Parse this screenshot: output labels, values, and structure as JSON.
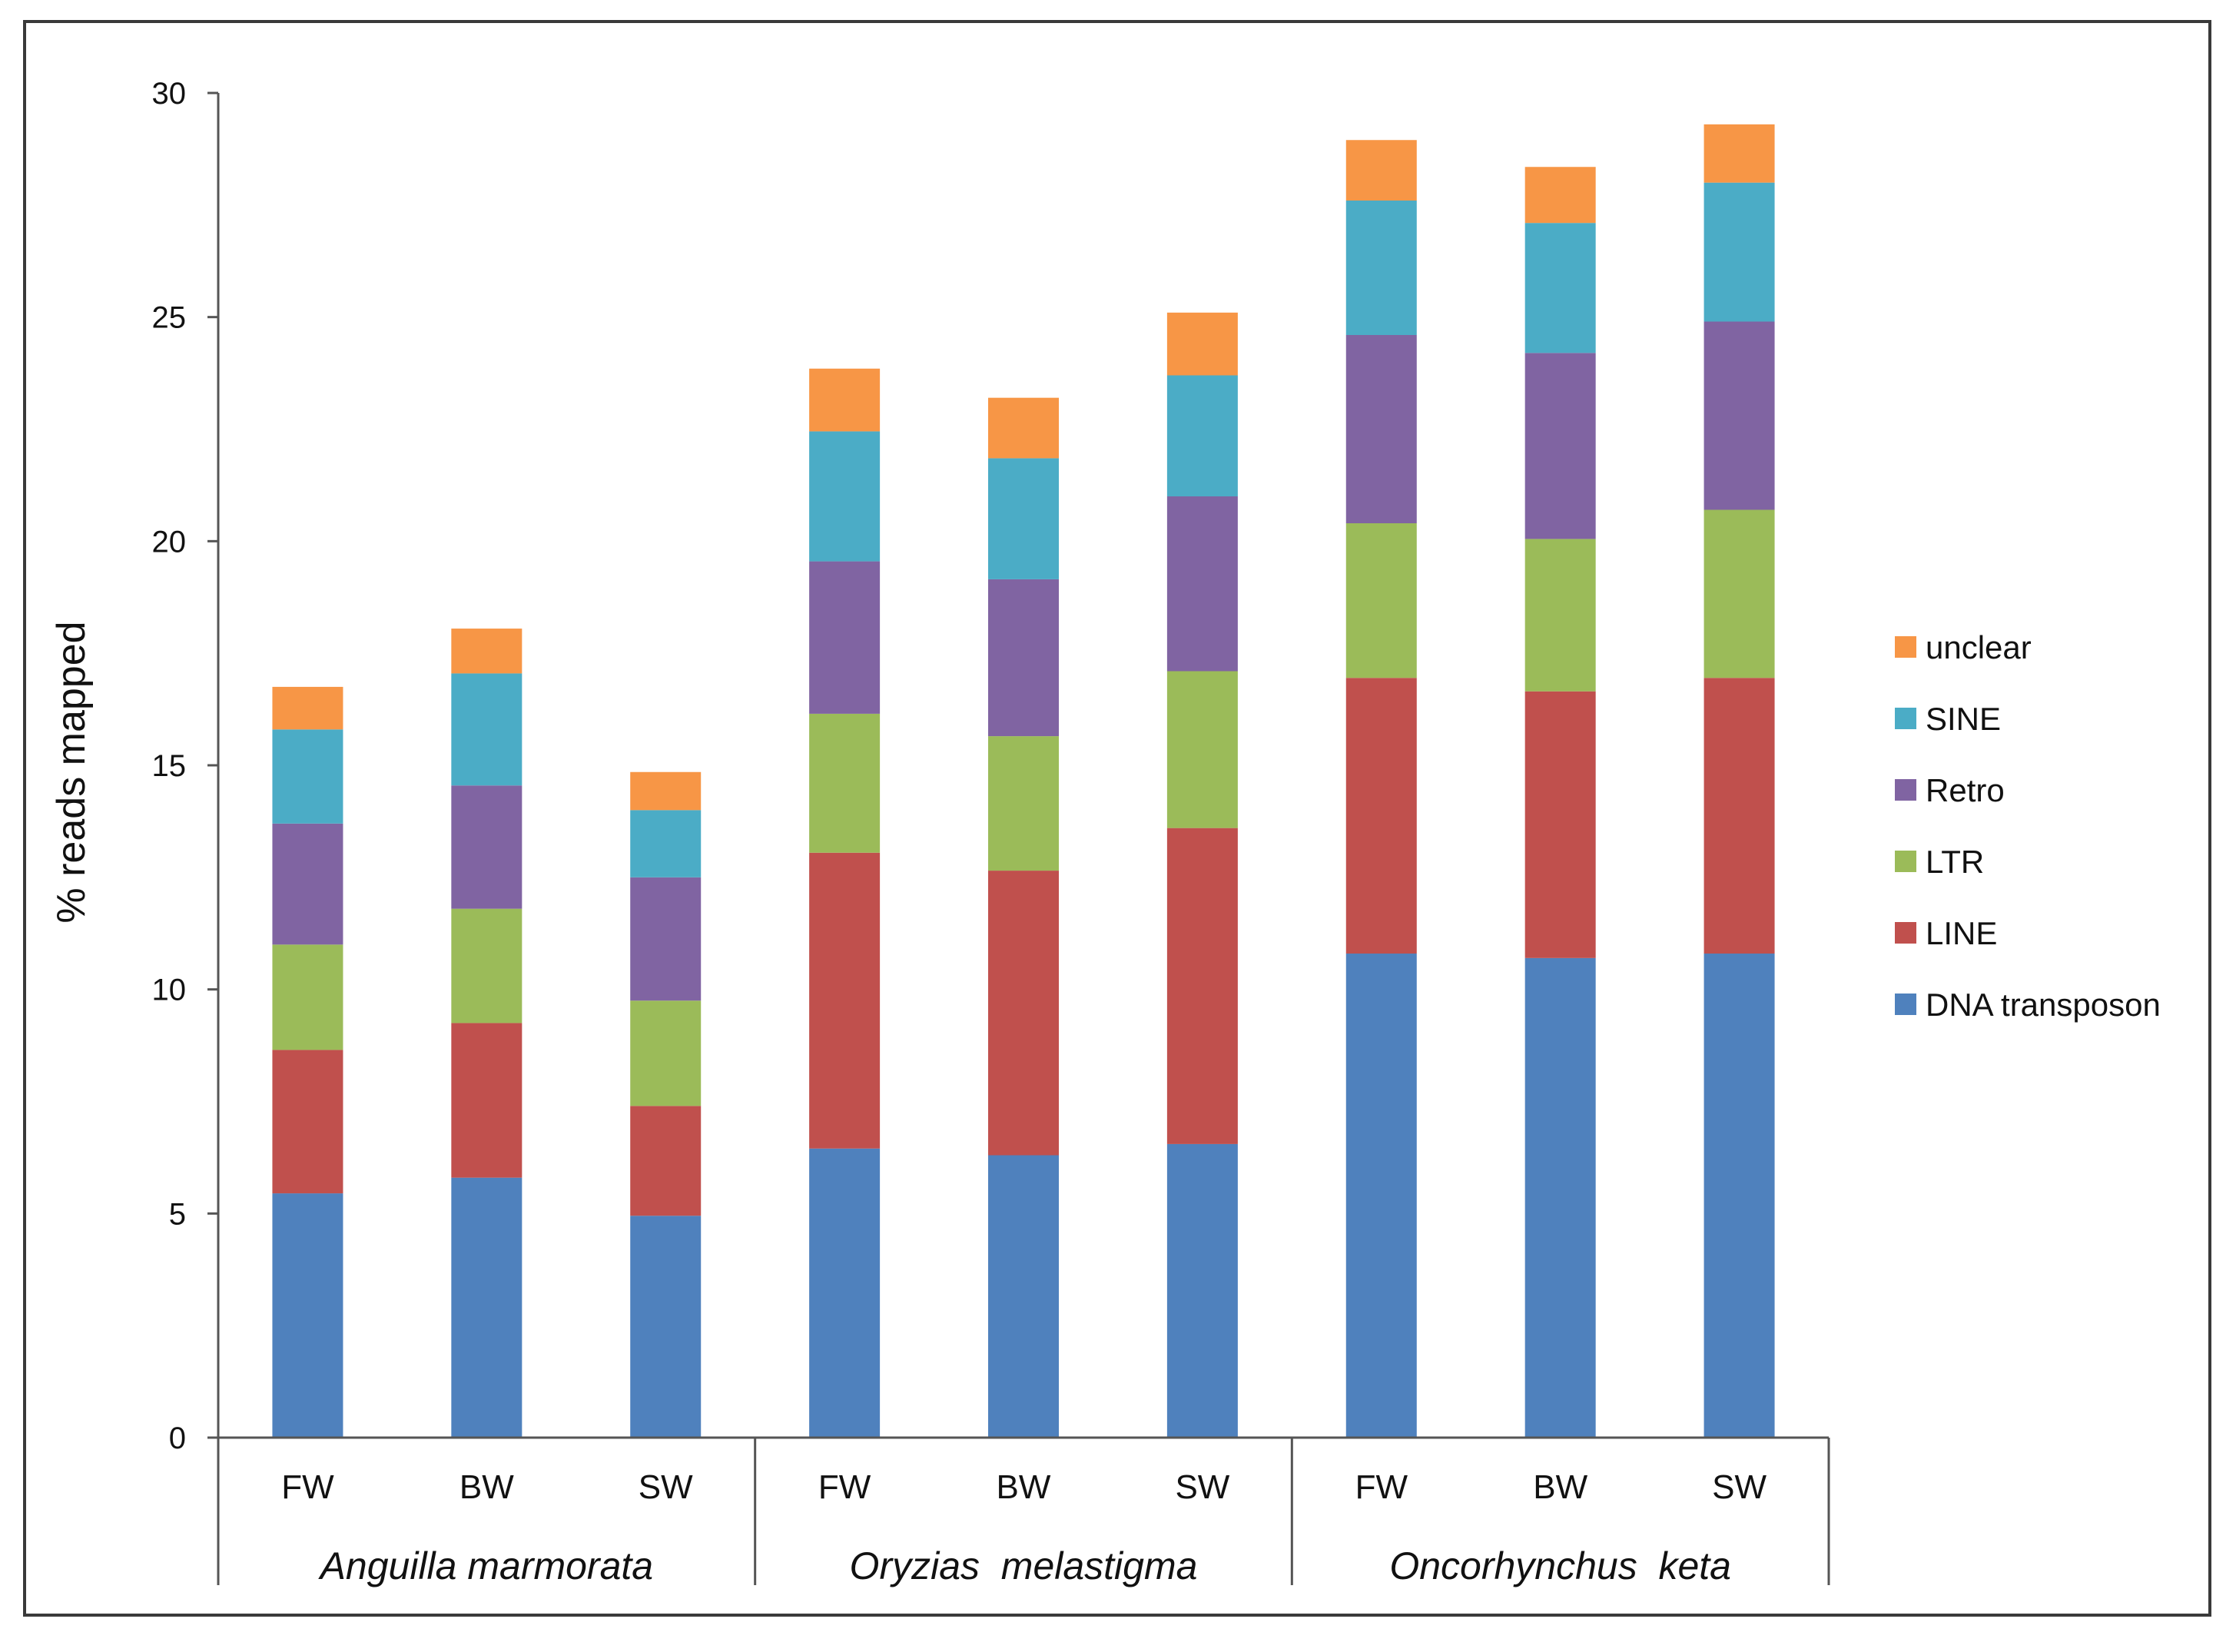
{
  "chart_data": {
    "type": "bar",
    "stacked": true,
    "ylabel": "% reads mapped",
    "ylim": [
      0,
      30
    ],
    "yticks": [
      0,
      5,
      10,
      15,
      20,
      25,
      30
    ],
    "grid": false,
    "legend_position": "right",
    "categories": [
      "FW",
      "BW",
      "SW",
      "FW",
      "BW",
      "SW",
      "FW",
      "BW",
      "SW"
    ],
    "groups": [
      {
        "label": "Anguilla marmorata",
        "categories": [
          "FW",
          "BW",
          "SW"
        ]
      },
      {
        "label": "Oryzias  melastigma",
        "categories": [
          "FW",
          "BW",
          "SW"
        ]
      },
      {
        "label": "Oncorhynchus  keta",
        "categories": [
          "FW",
          "BW",
          "SW"
        ]
      }
    ],
    "series": [
      {
        "name": "DNA transposon",
        "color": "#4F81BD",
        "values": [
          5.45,
          5.8,
          4.95,
          6.45,
          6.3,
          6.55,
          10.8,
          10.7,
          10.8
        ]
      },
      {
        "name": "LINE",
        "color": "#C0504D",
        "values": [
          3.2,
          3.45,
          2.45,
          6.6,
          6.35,
          7.05,
          6.15,
          5.95,
          6.15
        ]
      },
      {
        "name": "LTR",
        "color": "#9BBB59",
        "values": [
          2.35,
          2.55,
          2.35,
          3.1,
          3.0,
          3.5,
          3.45,
          3.4,
          3.75
        ]
      },
      {
        "name": "Retro",
        "color": "#8064A2",
        "values": [
          2.7,
          2.75,
          2.75,
          3.4,
          3.5,
          3.9,
          4.2,
          4.15,
          4.2
        ]
      },
      {
        "name": "SINE",
        "color": "#4BACC6",
        "values": [
          2.1,
          2.5,
          1.5,
          2.9,
          2.7,
          2.7,
          3.0,
          2.9,
          3.1
        ]
      },
      {
        "name": "unclear",
        "color": "#F79646",
        "values": [
          0.95,
          1.0,
          0.85,
          1.4,
          1.35,
          1.4,
          1.35,
          1.25,
          1.3
        ]
      }
    ]
  }
}
